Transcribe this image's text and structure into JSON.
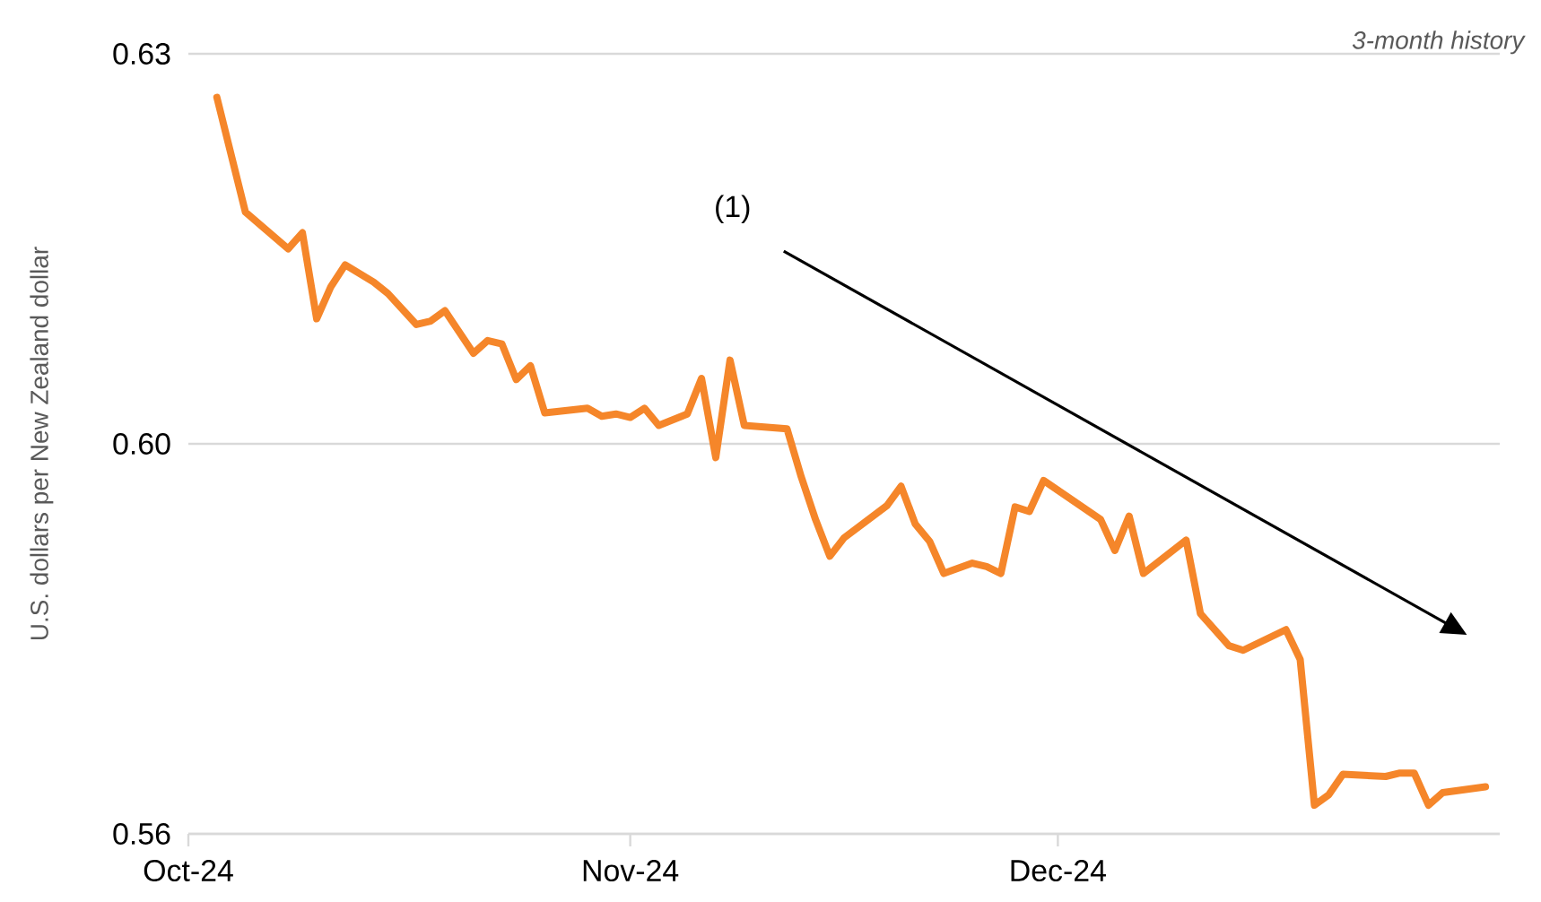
{
  "chart_data": {
    "type": "line",
    "subtitle": "*3-month history*",
    "ylabel": "U.S. dollars per New Zealand dollar",
    "annotations": [
      "(1)"
    ],
    "x": [
      "2024-10-03",
      "2024-10-05",
      "2024-10-08",
      "2024-10-09",
      "2024-10-10",
      "2024-10-11",
      "2024-10-12",
      "2024-10-14",
      "2024-10-15",
      "2024-10-17",
      "2024-10-18",
      "2024-10-19",
      "2024-10-21",
      "2024-10-22",
      "2024-10-23",
      "2024-10-24",
      "2024-10-25",
      "2024-10-26",
      "2024-10-29",
      "2024-10-30",
      "2024-10-31",
      "2024-11-01",
      "2024-11-02",
      "2024-11-03",
      "2024-11-05",
      "2024-11-06",
      "2024-11-07",
      "2024-11-08",
      "2024-11-09",
      "2024-11-12",
      "2024-11-13",
      "2024-11-14",
      "2024-11-15",
      "2024-11-16",
      "2024-11-19",
      "2024-11-20",
      "2024-11-21",
      "2024-11-22",
      "2024-11-23",
      "2024-11-25",
      "2024-11-26",
      "2024-11-27",
      "2024-11-28",
      "2024-11-29",
      "2024-11-30",
      "2024-12-04",
      "2024-12-05",
      "2024-12-06",
      "2024-12-07",
      "2024-12-10",
      "2024-12-11",
      "2024-12-13",
      "2024-12-14",
      "2024-12-17",
      "2024-12-18",
      "2024-12-19",
      "2024-12-20",
      "2024-12-21",
      "2024-12-24",
      "2024-12-25",
      "2024-12-26",
      "2024-12-27",
      "2024-12-28",
      "2024-12-31"
    ],
    "series": [
      {
        "color": "#f5862a",
        "values": [
          0.6262,
          0.6162,
          0.613,
          0.6144,
          0.6069,
          0.6097,
          0.6116,
          0.6101,
          0.6091,
          0.6064,
          0.6067,
          0.6076,
          0.6039,
          0.605,
          0.6047,
          0.6016,
          0.6028,
          0.5987,
          0.5991,
          0.5984,
          0.5986,
          0.5983,
          0.5991,
          0.5976,
          0.5986,
          0.6017,
          0.5948,
          0.6033,
          0.5976,
          0.5973,
          0.5931,
          0.5894,
          0.5862,
          0.5878,
          0.5906,
          0.5923,
          0.589,
          0.5875,
          0.5847,
          0.5856,
          0.5853,
          0.5847,
          0.5905,
          0.5901,
          0.5928,
          0.5894,
          0.5867,
          0.5897,
          0.5847,
          0.5876,
          0.5812,
          0.5784,
          0.578,
          0.5798,
          0.5772,
          0.5645,
          0.5654,
          0.5672,
          0.567,
          0.5673,
          0.5673,
          0.5645,
          0.5656,
          0.5661
        ]
      }
    ],
    "xlim": [
      "2024-10-01",
      "2025-01-01"
    ],
    "xticks": [
      {
        "value": "2024-10-01",
        "label": "Oct-24"
      },
      {
        "value": "2024-11-01",
        "label": "Nov-24"
      },
      {
        "value": "2024-12-01",
        "label": "Dec-24"
      }
    ],
    "ylim": [
      0.562,
      0.63
    ],
    "yticks": [
      {
        "value": 0.562,
        "label": "0.56"
      },
      {
        "value": 0.596,
        "label": "0.60"
      },
      {
        "value": 0.63,
        "label": "0.63"
      }
    ],
    "grid": "y",
    "marker": "none",
    "line_style": "solid"
  }
}
